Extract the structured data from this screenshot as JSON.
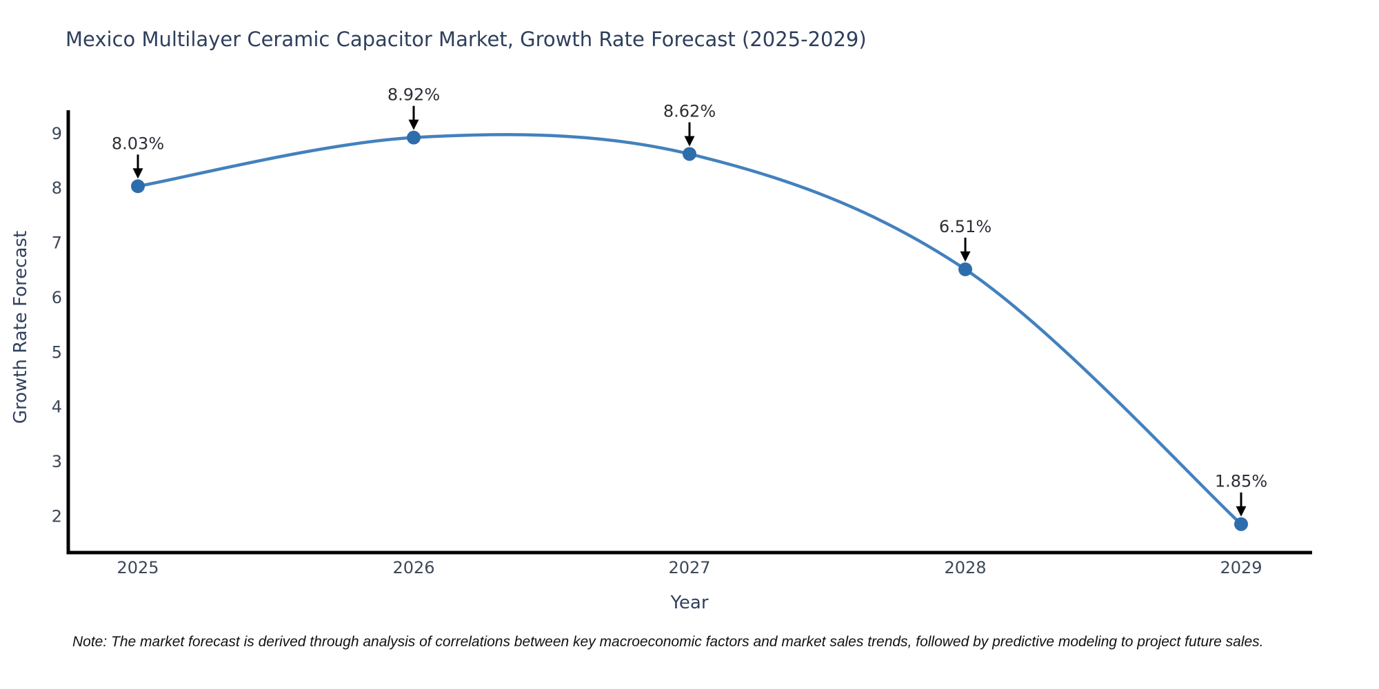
{
  "chart_data": {
    "type": "line",
    "title": "Mexico Multilayer Ceramic Capacitor Market, Growth Rate Forecast (2025-2029)",
    "xlabel": "Year",
    "ylabel": "Growth Rate Forecast",
    "x": [
      2025,
      2026,
      2027,
      2028,
      2029
    ],
    "series": [
      {
        "name": "Growth Rate Forecast",
        "values": [
          8.03,
          8.92,
          8.62,
          6.51,
          1.85
        ]
      }
    ],
    "point_labels": [
      "8.03%",
      "8.92%",
      "8.62%",
      "6.51%",
      "1.85%"
    ],
    "xticks": [
      "2025",
      "2026",
      "2027",
      "2028",
      "2029"
    ],
    "yticks": [
      2,
      3,
      4,
      5,
      6,
      7,
      8,
      9
    ],
    "ylim": [
      1.33,
      9.42
    ],
    "grid": false,
    "legend": "none",
    "curve": "smooth-spline",
    "annotations": "value labels with black arrows pointing to each marker",
    "style": {
      "line_color": "#4381bd",
      "marker_color": "#2e6dac",
      "marker_radius": 10,
      "line_width": 4.5,
      "arrow_color": "#000000",
      "spine_color": "#000000",
      "tick_color": "#3d4758",
      "annotation_color": "#2b2f36",
      "background": "#ffffff"
    }
  },
  "note": "Note: The market forecast is derived through analysis of correlations between key macroeconomic factors and market sales trends, followed by predictive modeling to project future sales."
}
